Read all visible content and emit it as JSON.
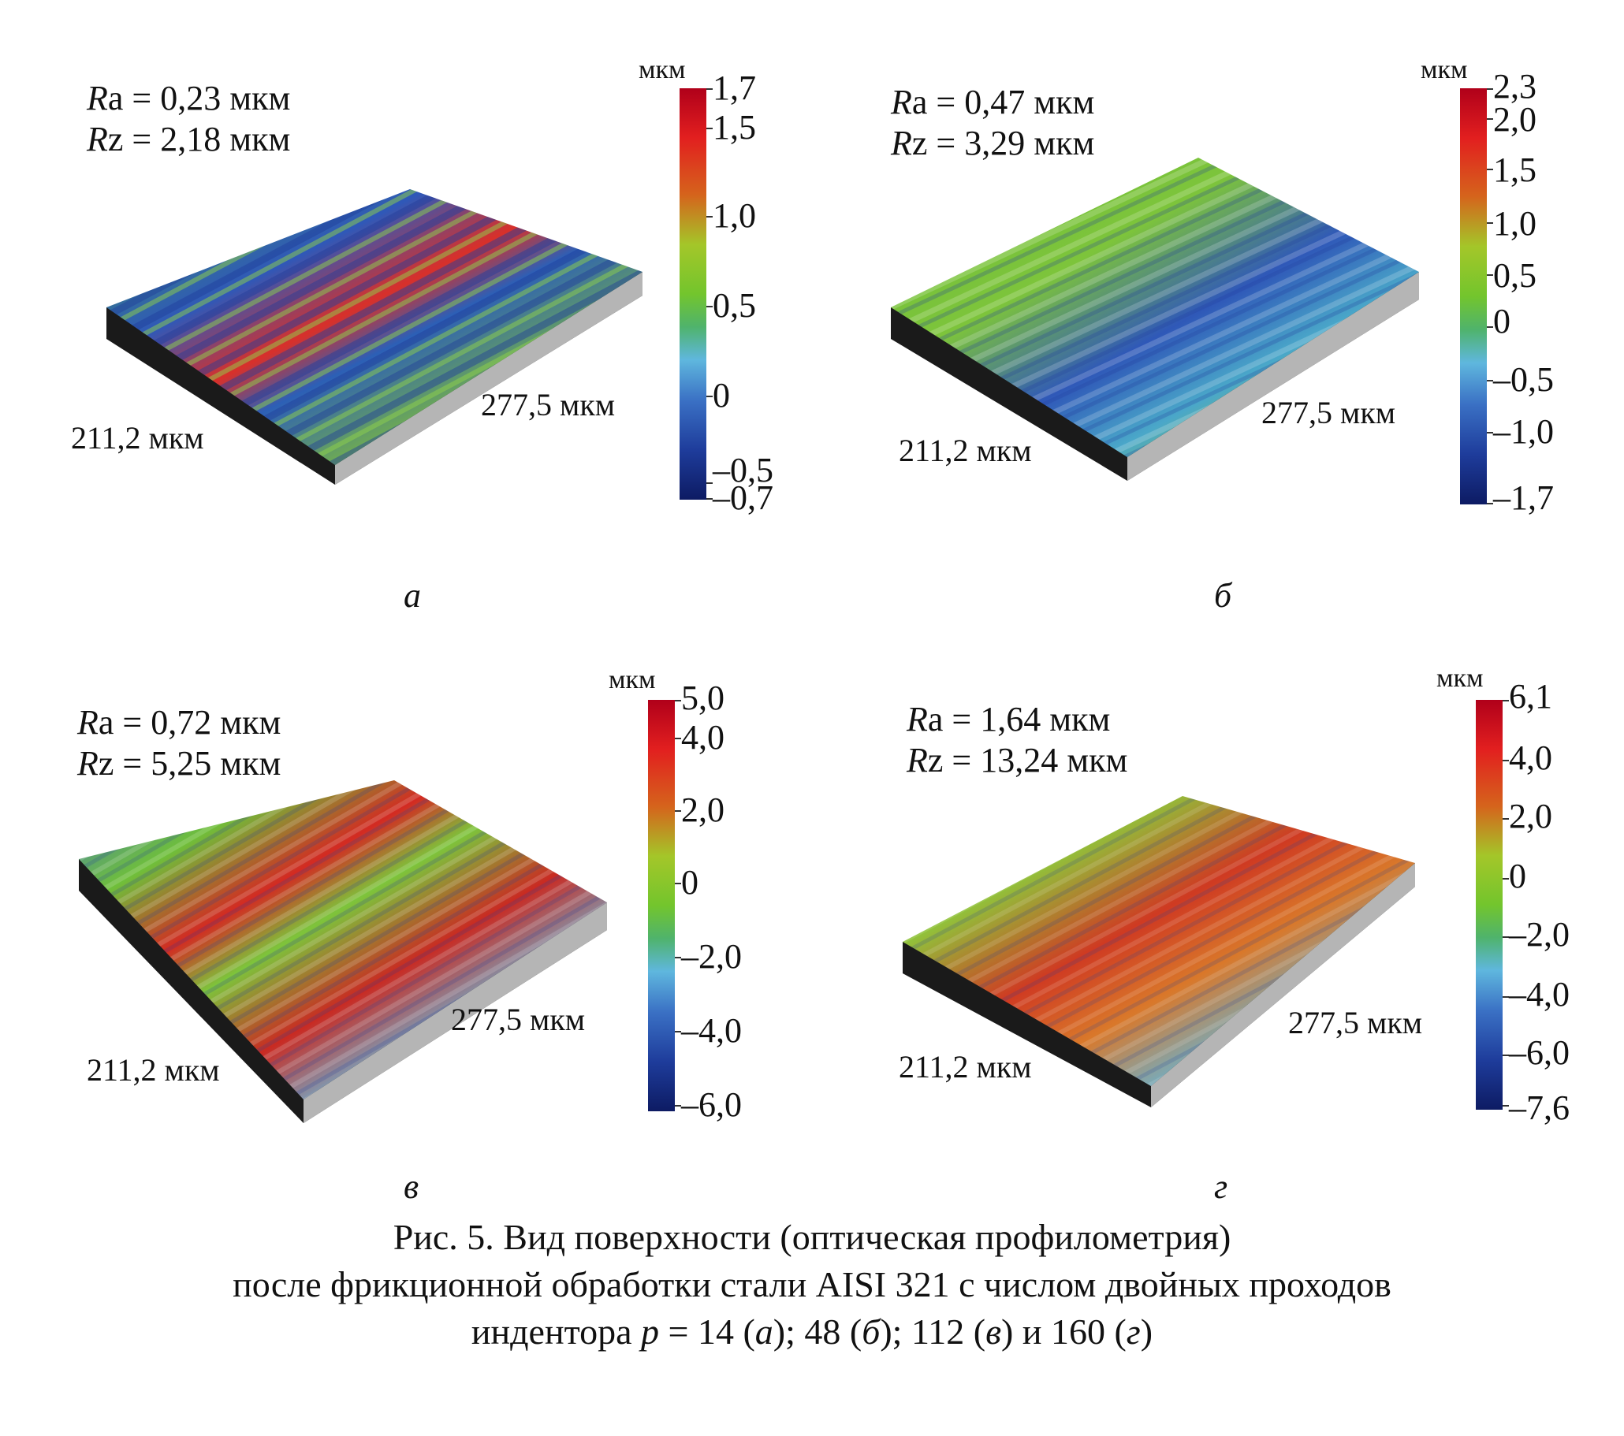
{
  "figure": {
    "panels": [
      {
        "id": "a",
        "ra_symbol": "R",
        "ra_text": "a = 0,23 мкм",
        "rz_symbol": "R",
        "rz_text": "z = 2,18 мкм",
        "dim_x": "211,2 мкм",
        "dim_y": "277,5 мкм",
        "unit": "мкм",
        "scale_ticks": [
          "1,7",
          "1,5",
          "1,0",
          "0,5",
          "0",
          "–0,5",
          "–0,7"
        ],
        "label": "а"
      },
      {
        "id": "b",
        "ra_symbol": "R",
        "ra_text": "a = 0,47 мкм",
        "rz_symbol": "R",
        "rz_text": "z = 3,29 мкм",
        "dim_x": "211,2 мкм",
        "dim_y": "277,5 мкм",
        "unit": "мкм",
        "scale_ticks": [
          "2,3",
          "2,0",
          "1,5",
          "1,0",
          "0,5",
          "0",
          "–0,5",
          "–1,0",
          "–1,7"
        ],
        "label": "б"
      },
      {
        "id": "c",
        "ra_symbol": "R",
        "ra_text": "a = 0,72 мкм",
        "rz_symbol": "R",
        "rz_text": "z = 5,25 мкм",
        "dim_x": "211,2 мкм",
        "dim_y": "277,5 мкм",
        "unit": "мкм",
        "scale_ticks": [
          "5,0",
          "4,0",
          "2,0",
          "0",
          "–2,0",
          "–4,0",
          "–6,0"
        ],
        "label": "в"
      },
      {
        "id": "d",
        "ra_symbol": "R",
        "ra_text": "a = 1,64 мкм",
        "rz_symbol": "R",
        "rz_text": "z = 13,24 мкм",
        "dim_x": "211,2 мкм",
        "dim_y": "277,5 мкм",
        "unit": "мкм",
        "scale_ticks": [
          "6,1",
          "4,0",
          "2,0",
          "0",
          "–2,0",
          "–4,0",
          "–6,0",
          "–7,6"
        ],
        "label": "г"
      }
    ],
    "caption": {
      "line1": "Рис. 5. Вид поверхности (оптическая профилометрия)",
      "line2": "после фрикционной обработки стали AISI 321 с числом двойных проходов",
      "line3_start": "индентора ",
      "line3_p": "p",
      "line3_mid1": " = 14 (",
      "line3_a": "а",
      "line3_mid2": "); 48 (",
      "line3_b": "б",
      "line3_mid3": "); 112 (",
      "line3_c": "в",
      "line3_mid4": ") и 160 (",
      "line3_d": "г",
      "line3_end": ")"
    }
  }
}
